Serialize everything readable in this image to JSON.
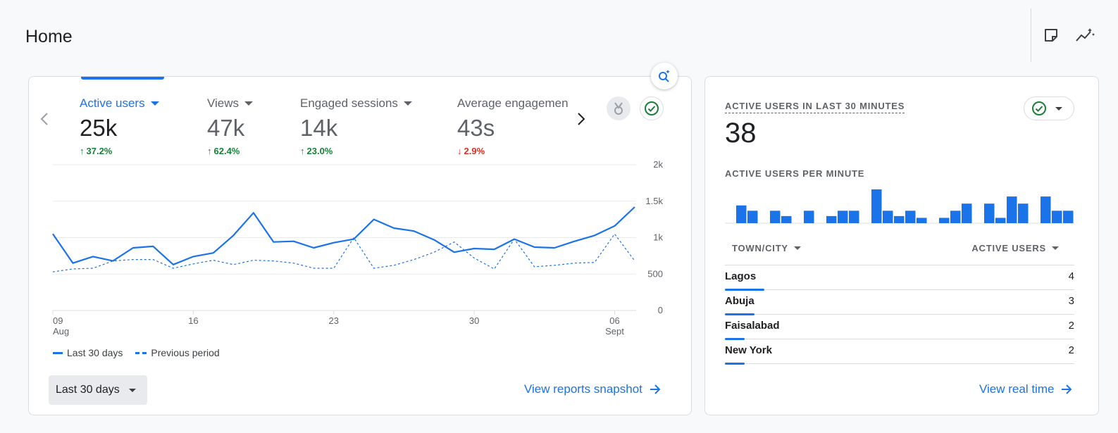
{
  "page": {
    "title": "Home"
  },
  "header_icons": [
    "notes-icon",
    "insights-icon"
  ],
  "main_card": {
    "metrics": [
      {
        "label": "Active users",
        "value": "25k",
        "change": "37.2%",
        "direction": "up",
        "active": true
      },
      {
        "label": "Views",
        "value": "47k",
        "change": "62.4%",
        "direction": "up",
        "active": false
      },
      {
        "label": "Engaged sessions",
        "value": "14k",
        "change": "23.0%",
        "direction": "up",
        "active": false
      },
      {
        "label": "Average engagement",
        "value": "43s",
        "change": "2.9%",
        "direction": "down",
        "active": false
      }
    ],
    "legend": {
      "current": "Last 30 days",
      "previous": "Previous period"
    },
    "date_range": "Last 30 days",
    "link": "View reports snapshot"
  },
  "chart_data": {
    "type": "line",
    "x": [
      "09 Aug",
      "10 Aug",
      "11 Aug",
      "12 Aug",
      "13 Aug",
      "14 Aug",
      "15 Aug",
      "16 Aug",
      "17 Aug",
      "18 Aug",
      "19 Aug",
      "20 Aug",
      "21 Aug",
      "22 Aug",
      "23 Aug",
      "24 Aug",
      "25 Aug",
      "26 Aug",
      "27 Aug",
      "28 Aug",
      "29 Aug",
      "30 Aug",
      "31 Aug",
      "01 Sept",
      "02 Sept",
      "03 Sept",
      "04 Sept",
      "05 Sept",
      "06 Sept",
      "07 Sept"
    ],
    "x_ticks": [
      {
        "day": "09",
        "month": "Aug",
        "index": 0
      },
      {
        "day": "16",
        "month": "",
        "index": 7
      },
      {
        "day": "23",
        "month": "",
        "index": 14
      },
      {
        "day": "30",
        "month": "",
        "index": 21
      },
      {
        "day": "06",
        "month": "Sept",
        "index": 28
      }
    ],
    "y_ticks": [
      "0",
      "500",
      "1k",
      "1.5k",
      "2k"
    ],
    "ylim": [
      0,
      2000
    ],
    "series": [
      {
        "name": "Last 30 days",
        "style": "solid",
        "values": [
          1050,
          650,
          740,
          680,
          860,
          880,
          630,
          740,
          790,
          1030,
          1340,
          940,
          950,
          860,
          930,
          980,
          1250,
          1130,
          1090,
          970,
          800,
          850,
          840,
          980,
          870,
          860,
          950,
          1030,
          1160,
          1420
        ]
      },
      {
        "name": "Previous period",
        "style": "dashed",
        "values": [
          530,
          570,
          580,
          680,
          700,
          700,
          580,
          640,
          690,
          630,
          690,
          680,
          650,
          580,
          580,
          1000,
          580,
          620,
          700,
          800,
          940,
          720,
          570,
          980,
          600,
          620,
          650,
          660,
          1050,
          680
        ]
      }
    ],
    "color": "#1a73e8",
    "grid": true
  },
  "realtime": {
    "title": "ACTIVE USERS IN LAST 30 MINUTES",
    "value": "38",
    "sub_title": "ACTIVE USERS PER MINUTE",
    "per_minute": [
      2,
      1.4,
      0,
      1.4,
      0.8,
      0,
      1.4,
      0,
      0.8,
      1.4,
      1.4,
      0,
      3.8,
      1.4,
      0.8,
      1.4,
      0.6,
      0,
      0.6,
      1.4,
      2.2,
      0,
      2.2,
      0.6,
      3,
      2.2,
      0,
      3,
      1.4,
      1.4
    ],
    "table": {
      "col_city": "TOWN/CITY",
      "col_users": "ACTIVE USERS",
      "rows": [
        {
          "city": "Lagos",
          "users": "4",
          "share": 1.0
        },
        {
          "city": "Abuja",
          "users": "3",
          "share": 0.75
        },
        {
          "city": "Faisalabad",
          "users": "2",
          "share": 0.5
        },
        {
          "city": "New York",
          "users": "2",
          "share": 0.5
        }
      ]
    },
    "link": "View real time"
  }
}
